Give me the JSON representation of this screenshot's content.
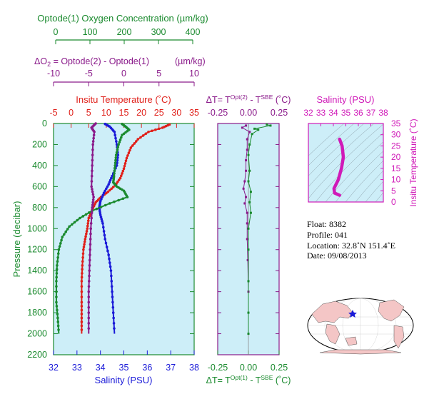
{
  "colors": {
    "green": "#1a8a2e",
    "purple": "#8a1a8a",
    "red": "#e0201a",
    "blue": "#1a1ad8",
    "magenta": "#d01ab8",
    "panel_bg": "#cdeef8",
    "land": "#f4c6c6"
  },
  "chart_data": [
    {
      "type": "line",
      "panel": "main-profiles",
      "ylabel": "Pressure (decibar)",
      "ylim": [
        2200,
        0
      ],
      "y_ticks": [
        "0",
        "200",
        "400",
        "600",
        "800",
        "1000",
        "1200",
        "1400",
        "1600",
        "1800",
        "2000",
        "2200"
      ],
      "axes": [
        {
          "position": "top",
          "label": "Optode(1) Oxygen Concentration (µm/kg)",
          "range": [
            0,
            400
          ],
          "ticks": [
            "0",
            "100",
            "200",
            "300",
            "400"
          ],
          "color": "green"
        },
        {
          "position": "top",
          "label_prefix": "ΔO",
          "label_sub": "2",
          "label_rest": " = Optode(2) - Optode(1)",
          "label_unit": "(µm/kg)",
          "range": [
            -10,
            10
          ],
          "ticks": [
            "-10",
            "-5",
            "0",
            "5",
            "10"
          ],
          "color": "purple"
        },
        {
          "position": "top",
          "label": "Insitu Temperature (˚C)",
          "range": [
            -5,
            35
          ],
          "ticks": [
            "-5",
            "0",
            "5",
            "10",
            "15",
            "20",
            "25",
            "30",
            "35"
          ],
          "color": "red"
        },
        {
          "position": "bottom",
          "label": "Salinity (PSU)",
          "range": [
            32,
            38
          ],
          "ticks": [
            "32",
            "33",
            "34",
            "35",
            "36",
            "37",
            "38"
          ],
          "color": "blue"
        }
      ],
      "series": [
        {
          "axis": 2,
          "color": "red",
          "points": [
            [
              28,
              10
            ],
            [
              26,
              40
            ],
            [
              22,
              80
            ],
            [
              19,
              150
            ],
            [
              17,
              230
            ],
            [
              15.8,
              330
            ],
            [
              15,
              430
            ],
            [
              14,
              520
            ],
            [
              12.5,
              590
            ],
            [
              10.5,
              650
            ],
            [
              8.5,
              700
            ],
            [
              7,
              750
            ],
            [
              6,
              820
            ],
            [
              5,
              900
            ],
            [
              4.6,
              1000
            ],
            [
              4,
              1100
            ],
            [
              3.5,
              1200
            ],
            [
              3.2,
              1350
            ],
            [
              3,
              1500
            ],
            [
              3,
              1700
            ],
            [
              3,
              1850
            ],
            [
              3,
              2000
            ]
          ]
        },
        {
          "axis": 3,
          "color": "blue",
          "points": [
            [
              34.2,
              5
            ],
            [
              34.4,
              30
            ],
            [
              34.6,
              80
            ],
            [
              34.7,
              200
            ],
            [
              34.75,
              300
            ],
            [
              34.7,
              400
            ],
            [
              34.5,
              500
            ],
            [
              34.35,
              580
            ],
            [
              34.15,
              660
            ],
            [
              34.0,
              740
            ],
            [
              33.95,
              800
            ],
            [
              34.0,
              870
            ],
            [
              34.1,
              950
            ],
            [
              34.2,
              1100
            ],
            [
              34.35,
              1250
            ],
            [
              34.45,
              1400
            ],
            [
              34.5,
              1600
            ],
            [
              34.55,
              1800
            ],
            [
              34.6,
              2000
            ]
          ]
        },
        {
          "axis": 0,
          "color": "green",
          "points": [
            [
              195,
              5
            ],
            [
              205,
              30
            ],
            [
              215,
              60
            ],
            [
              195,
              110
            ],
            [
              185,
              200
            ],
            [
              178,
              300
            ],
            [
              175,
              400
            ],
            [
              172,
              500
            ],
            [
              170,
              560
            ],
            [
              180,
              600
            ],
            [
              200,
              640
            ],
            [
              210,
              700
            ],
            [
              160,
              760
            ],
            [
              110,
              830
            ],
            [
              75,
              900
            ],
            [
              45,
              980
            ],
            [
              25,
              1080
            ],
            [
              15,
              1200
            ],
            [
              10,
              1350
            ],
            [
              8,
              1500
            ],
            [
              8,
              1700
            ],
            [
              12,
              1850
            ],
            [
              15,
              2000
            ]
          ]
        },
        {
          "axis": 1,
          "color": "purple",
          "points": [
            [
              -4,
              0
            ],
            [
              -4.6,
              40
            ],
            [
              -4.2,
              80
            ],
            [
              -4.4,
              200
            ],
            [
              -4.5,
              400
            ],
            [
              -4.6,
              600
            ],
            [
              -4.3,
              700
            ],
            [
              -4.5,
              800
            ],
            [
              -4.7,
              1000
            ],
            [
              -4.8,
              1200
            ],
            [
              -4.9,
              1400
            ],
            [
              -5,
              1600
            ],
            [
              -5,
              1800
            ],
            [
              -5,
              2000
            ]
          ]
        }
      ]
    },
    {
      "type": "scatter",
      "panel": "delta-temperature",
      "xlim": [
        -0.25,
        0.25
      ],
      "ylim": [
        2200,
        0
      ],
      "top_ticks": [
        "-0.25",
        "0.00",
        "0.25"
      ],
      "bottom_ticks": [
        "-0.25",
        "0.00",
        "0.25"
      ],
      "top_label": {
        "a": "ΔT= T",
        "sup1": "Opt(2)",
        "b": " - T",
        "sup2": "SBE",
        "c": " (˚C)",
        "color": "purple"
      },
      "bottom_label": {
        "a": "ΔT= T",
        "sup1": "Opt(1)",
        "b": " - T",
        "sup2": "SBE",
        "c": " (˚C)",
        "color": "green"
      },
      "series": [
        {
          "color": "purple",
          "points": [
            [
              -0.02,
              20
            ],
            [
              -0.05,
              40
            ],
            [
              0.01,
              80
            ],
            [
              -0.01,
              150
            ],
            [
              -0.01,
              250
            ],
            [
              -0.02,
              350
            ],
            [
              -0.02,
              450
            ],
            [
              -0.03,
              550
            ],
            [
              -0.04,
              620
            ],
            [
              -0.02,
              700
            ],
            [
              -0.03,
              760
            ],
            [
              -0.01,
              850
            ],
            [
              -0.01,
              950
            ],
            [
              -0.01,
              1100
            ],
            [
              -0.005,
              1300
            ],
            [
              0,
              1600
            ],
            [
              0,
              2000
            ]
          ]
        },
        {
          "color": "green",
          "points": [
            [
              0.15,
              10
            ],
            [
              0.18,
              20
            ],
            [
              0.05,
              50
            ],
            [
              0.08,
              60
            ],
            [
              0.03,
              100
            ],
            [
              0.01,
              200
            ],
            [
              0.0,
              300
            ],
            [
              0.01,
              450
            ],
            [
              0.0,
              550
            ],
            [
              0.02,
              650
            ],
            [
              0.01,
              750
            ],
            [
              0.02,
              850
            ],
            [
              0.0,
              1000
            ],
            [
              0.0,
              1200
            ],
            [
              0,
              1500
            ],
            [
              0,
              1800
            ],
            [
              0,
              2000
            ]
          ]
        }
      ]
    },
    {
      "type": "line",
      "panel": "ts-diagram",
      "xlabel": "Salinity (PSU)",
      "ylabel": "Insitu Temperature (˚C)",
      "xlim": [
        32,
        38
      ],
      "ylim": [
        0,
        35
      ],
      "x_ticks": [
        "32",
        "33",
        "34",
        "35",
        "36",
        "37",
        "38"
      ],
      "y_ticks": [
        "0",
        "5",
        "10",
        "15",
        "20",
        "25",
        "30",
        "35"
      ],
      "series": [
        {
          "color": "magenta",
          "points": [
            [
              34.5,
              28
            ],
            [
              34.7,
              25
            ],
            [
              34.8,
              20
            ],
            [
              34.65,
              15
            ],
            [
              34.4,
              10
            ],
            [
              34.05,
              6
            ],
            [
              34.1,
              4
            ],
            [
              34.5,
              3
            ]
          ]
        }
      ]
    }
  ],
  "info": {
    "float": "Float:  8382",
    "profile": "Profile:  041",
    "location": "Location:  32.8˚N  151.4˚E",
    "date": "Date:  09/08/2013"
  },
  "map": {
    "marker_color": "#1a1ad8"
  }
}
